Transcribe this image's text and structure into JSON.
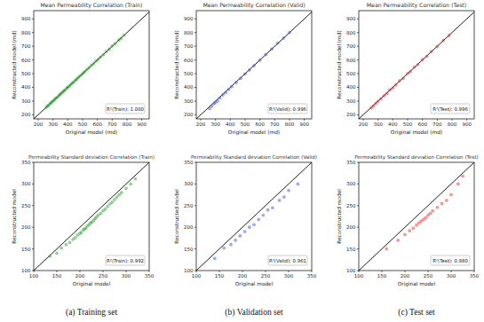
{
  "chart_data": [
    {
      "type": "scatter",
      "title": "Mean Permeability Correlation (Train)",
      "x_label": "Original model (md)",
      "y_label": "Reconstructed model (md)",
      "annotation": "R²(Train): 1.000",
      "color": "#2ca02c",
      "marker": "circle",
      "grid": false,
      "xlim": [
        170,
        950
      ],
      "ylim": [
        170,
        960
      ],
      "xticks": [
        200,
        300,
        400,
        500,
        600,
        700,
        800,
        900
      ],
      "yticks": [
        200,
        300,
        400,
        500,
        600,
        700,
        800,
        900
      ],
      "x": [
        255,
        262,
        270,
        280,
        288,
        295,
        305,
        312,
        320,
        330,
        340,
        348,
        355,
        365,
        372,
        380,
        392,
        400,
        410,
        420,
        430,
        440,
        452,
        460,
        470,
        480,
        495,
        505,
        515,
        530,
        545,
        560,
        575,
        590,
        605,
        620,
        640,
        660,
        680,
        700,
        720,
        745,
        760,
        780
      ],
      "values": [
        254,
        264,
        268,
        282,
        287,
        297,
        303,
        313,
        322,
        328,
        341,
        347,
        357,
        363,
        374,
        379,
        393,
        401,
        408,
        421,
        432,
        438,
        453,
        459,
        471,
        482,
        493,
        506,
        514,
        531,
        544,
        561,
        573,
        592,
        604,
        621,
        638,
        661,
        679,
        702,
        719,
        746,
        758,
        781
      ]
    },
    {
      "type": "scatter",
      "title": "Mean Permeability Correlation (Valid)",
      "x_label": "Original model (md)",
      "y_label": "Reconstructed model (md)",
      "annotation": "R²(Valid): 0.996",
      "color": "#3b55d6",
      "marker": "circle",
      "grid": false,
      "xlim": [
        170,
        950
      ],
      "ylim": [
        170,
        960
      ],
      "xticks": [
        200,
        300,
        400,
        500,
        600,
        700,
        800,
        900
      ],
      "yticks": [
        200,
        300,
        400,
        500,
        600,
        700,
        800,
        900
      ],
      "x": [
        260,
        275,
        290,
        300,
        315,
        330,
        350,
        370,
        390,
        410,
        440,
        470,
        500,
        530,
        560,
        600,
        640,
        680,
        720,
        760,
        800
      ],
      "values": [
        245,
        262,
        280,
        290,
        300,
        322,
        345,
        362,
        385,
        405,
        436,
        466,
        498,
        527,
        558,
        598,
        640,
        680,
        722,
        760,
        800
      ]
    },
    {
      "type": "scatter",
      "title": "Mean Permeability Correlation (Test)",
      "x_label": "Original model (md)",
      "y_label": "Reconstructed model (md)",
      "annotation": "R²(Test): 0.996",
      "color": "#e03030",
      "marker": "circle",
      "grid": false,
      "xlim": [
        170,
        950
      ],
      "ylim": [
        170,
        960
      ],
      "xticks": [
        200,
        300,
        400,
        500,
        600,
        700,
        800,
        900
      ],
      "yticks": [
        200,
        300,
        400,
        500,
        600,
        700,
        800,
        900
      ],
      "x": [
        255,
        270,
        285,
        300,
        320,
        340,
        360,
        380,
        400,
        420,
        445,
        470,
        500,
        520,
        545,
        570,
        600,
        630,
        660,
        700,
        740,
        780
      ],
      "values": [
        250,
        265,
        282,
        298,
        316,
        338,
        356,
        382,
        396,
        418,
        448,
        466,
        502,
        516,
        548,
        566,
        603,
        626,
        662,
        698,
        742,
        778
      ]
    },
    {
      "type": "scatter",
      "title": "Permeability Standard deviation Correlation (Train)",
      "x_label": "Original model",
      "y_label": "Reconstructed model",
      "annotation": "R²(Train): 0.992",
      "color": "#2ca02c",
      "marker": "circle",
      "grid": false,
      "xlim": [
        100,
        350
      ],
      "ylim": [
        100,
        350
      ],
      "xticks": [
        100,
        150,
        200,
        250,
        300,
        350
      ],
      "yticks": [
        100,
        150,
        200,
        250,
        300,
        350
      ],
      "x": [
        135,
        150,
        160,
        170,
        178,
        185,
        190,
        195,
        200,
        203,
        207,
        210,
        213,
        216,
        220,
        223,
        226,
        230,
        233,
        236,
        240,
        245,
        250,
        255,
        260,
        265,
        270,
        275,
        280,
        285,
        290,
        300,
        310,
        320
      ],
      "values": [
        133,
        140,
        152,
        160,
        165,
        172,
        176,
        182,
        186,
        188,
        194,
        196,
        198,
        203,
        206,
        210,
        212,
        216,
        220,
        224,
        228,
        232,
        238,
        242,
        248,
        254,
        258,
        264,
        270,
        275,
        280,
        290,
        300,
        312
      ]
    },
    {
      "type": "scatter",
      "title": "Permeability Standard deviation Correlation (Valid)",
      "x_label": "Original model",
      "y_label": "Reconstructed model",
      "annotation": "R²(Valid): 0.961",
      "color": "#3b55d6",
      "marker": "circle",
      "grid": false,
      "xlim": [
        100,
        350
      ],
      "ylim": [
        100,
        350
      ],
      "xticks": [
        100,
        150,
        200,
        250,
        300,
        350
      ],
      "yticks": [
        100,
        150,
        200,
        250,
        300,
        350
      ],
      "x": [
        140,
        160,
        175,
        185,
        195,
        205,
        215,
        225,
        235,
        245,
        255,
        265,
        280,
        290,
        300,
        320
      ],
      "values": [
        128,
        152,
        160,
        170,
        180,
        190,
        200,
        206,
        218,
        228,
        240,
        245,
        262,
        270,
        285,
        300
      ]
    },
    {
      "type": "scatter",
      "title": "Permeability Standard deviation Correlation (Test)",
      "x_label": "Original model",
      "y_label": "Reconstructed model",
      "annotation": "R²(Test): 0.980",
      "color": "#e03030",
      "marker": "circle",
      "grid": false,
      "xlim": [
        100,
        350
      ],
      "ylim": [
        100,
        350
      ],
      "xticks": [
        100,
        150,
        200,
        250,
        300,
        350
      ],
      "yticks": [
        100,
        150,
        200,
        250,
        300,
        350
      ],
      "x": [
        160,
        185,
        200,
        210,
        218,
        225,
        230,
        235,
        240,
        245,
        250,
        255,
        260,
        270,
        280,
        290,
        300,
        315,
        325
      ],
      "values": [
        150,
        170,
        183,
        192,
        198,
        205,
        210,
        214,
        218,
        222,
        228,
        232,
        238,
        246,
        255,
        262,
        275,
        300,
        318
      ]
    }
  ],
  "captions": [
    "(a) Training set",
    "(b) Validation set",
    "(c) Test set"
  ]
}
